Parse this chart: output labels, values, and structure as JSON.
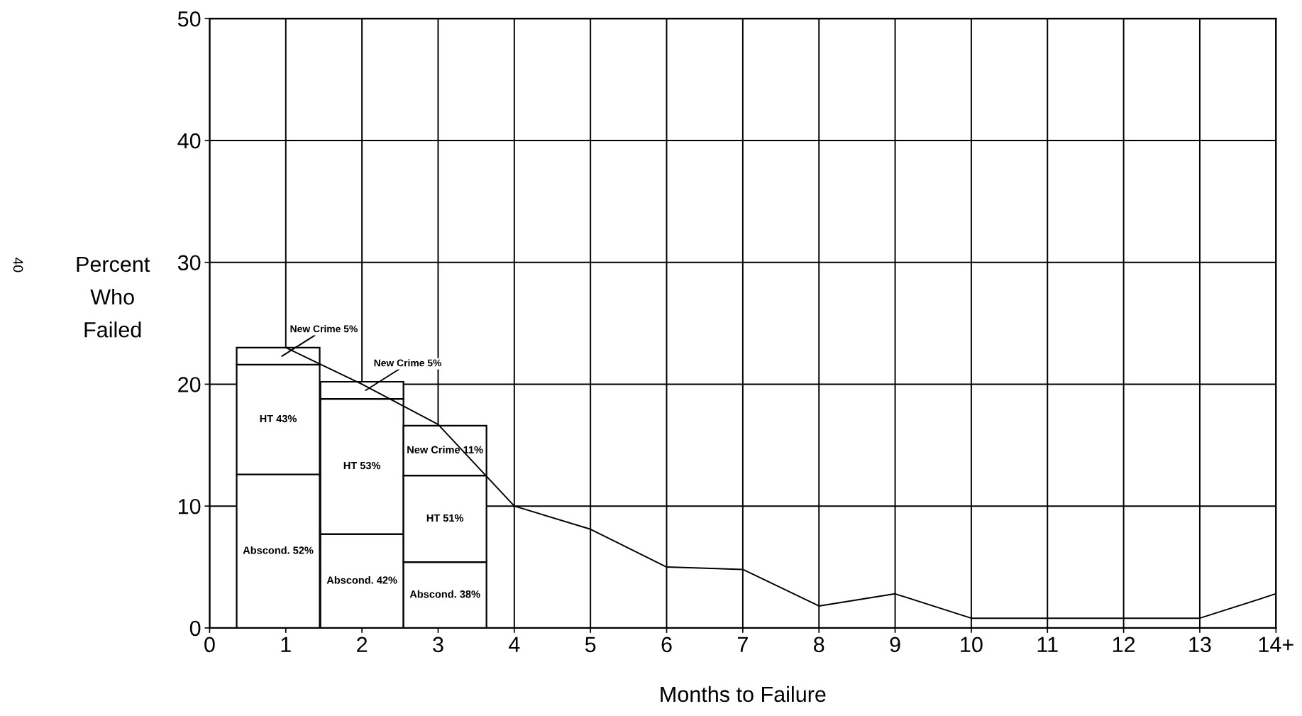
{
  "chart_data": {
    "type": "bar",
    "stacked": true,
    "xlabel": "Months to Failure",
    "ylabel": "Percent\nWho\nFailed",
    "xlim": [
      0,
      14
    ],
    "xticks": [
      0,
      1,
      2,
      3,
      4,
      5,
      6,
      7,
      8,
      9,
      10,
      11,
      12,
      13,
      {
        "value": 14,
        "label": "14+"
      }
    ],
    "ylim": [
      0,
      50
    ],
    "yticks": [
      0,
      10,
      20,
      30,
      40,
      50
    ],
    "grid": true,
    "marker": "none",
    "line_style": "solid",
    "series": [
      {
        "type": "line",
        "color": "#000000",
        "x": [
          1,
          2,
          3,
          4,
          5,
          6,
          7,
          8,
          9,
          10,
          11,
          12,
          13,
          14
        ],
        "values": [
          23,
          20,
          16.7,
          10,
          8.1,
          5,
          4.8,
          1.8,
          2.8,
          0.8,
          0.8,
          0.8,
          0.8,
          2.8
        ]
      },
      {
        "color": "#ffffff",
        "x": [
          0.9,
          2.0,
          3.09
        ],
        "values": [
          12.6,
          7.7,
          5.4
        ]
      },
      {
        "color": "#ffffff",
        "x": [
          0.9,
          2.0,
          3.09
        ],
        "values": [
          9.0,
          11.1,
          7.1
        ]
      },
      {
        "color": "#ffffff",
        "x": [
          0.9,
          2.0,
          3.09
        ],
        "values": [
          1.4,
          1.4,
          4.1
        ]
      }
    ],
    "annotations": [
      "Abscond. 52%",
      "Abscond. 42%",
      "Abscond. 38%",
      "HT 43%",
      "HT 53%",
      "HT 51%",
      "New Crime 5%",
      "New Crime 5%",
      "New Crime 11%",
      "40"
    ]
  }
}
